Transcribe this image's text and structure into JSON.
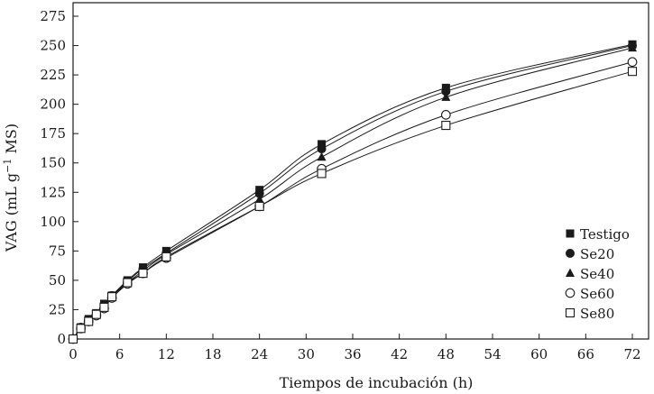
{
  "chart_data": {
    "type": "line",
    "title": "",
    "xlabel": "Tiempos de incubación (h)",
    "ylabel": "VAG (mL g",
    "ylabel_sup": "−1",
    "ylabel_tail": " MS)",
    "xlim": [
      0,
      72
    ],
    "ylim": [
      0,
      275
    ],
    "x_ticks": [
      0,
      6,
      12,
      18,
      24,
      30,
      36,
      42,
      48,
      54,
      60,
      66,
      72
    ],
    "y_ticks": [
      0,
      25,
      50,
      75,
      100,
      125,
      150,
      175,
      200,
      225,
      250,
      275
    ],
    "grid": false,
    "legend_position": "bottom-right",
    "x": [
      0,
      1,
      2,
      3,
      4,
      5,
      7,
      9,
      12,
      24,
      32,
      48,
      72
    ],
    "series": [
      {
        "name": "Testigo",
        "marker": "filled-square",
        "values": [
          0,
          10,
          17,
          22,
          30,
          37,
          50,
          61,
          75,
          127,
          166,
          214,
          251
        ]
      },
      {
        "name": "Se20",
        "marker": "filled-circle",
        "values": [
          0,
          10,
          16,
          21,
          28,
          37,
          49,
          60,
          73,
          124,
          162,
          211,
          250
        ]
      },
      {
        "name": "Se40",
        "marker": "filled-triangle",
        "values": [
          0,
          9,
          16,
          21,
          27,
          36,
          48,
          58,
          72,
          119,
          155,
          206,
          248
        ]
      },
      {
        "name": "Se60",
        "marker": "open-circle",
        "values": [
          0,
          9,
          15,
          20,
          26,
          35,
          47,
          56,
          69,
          113,
          145,
          191,
          236
        ]
      },
      {
        "name": "Se80",
        "marker": "open-square",
        "values": [
          0,
          9,
          15,
          21,
          27,
          36,
          48,
          56,
          70,
          113,
          141,
          182,
          228
        ]
      }
    ]
  }
}
